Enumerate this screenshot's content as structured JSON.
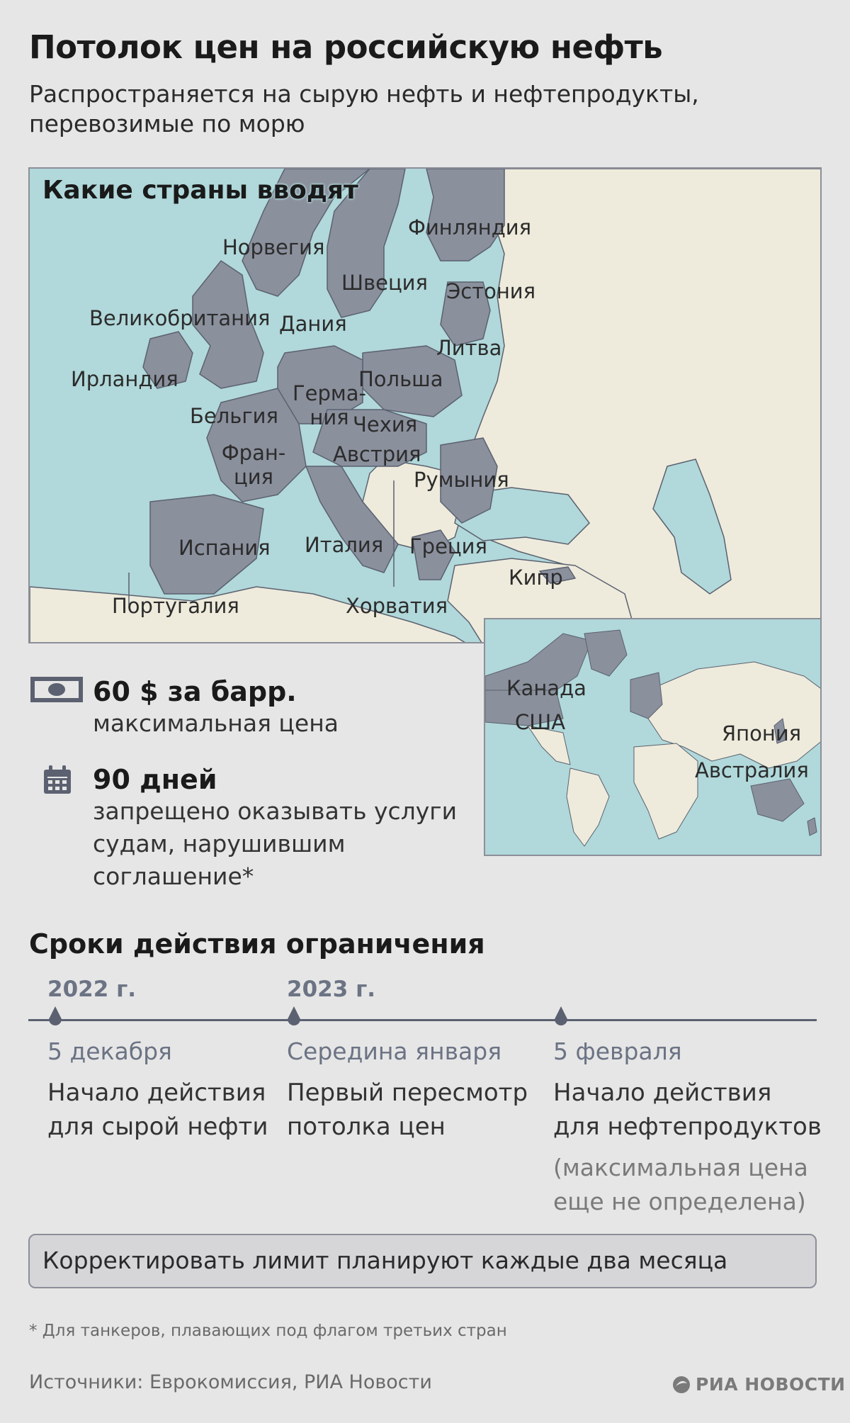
{
  "title": "Потолок цен на российскую нефть",
  "subtitle": "Распространяется на сырую нефть и нефтепродукты, перевозимые по морю",
  "colors": {
    "sea": "#b1d8da",
    "land": "#eeebdc",
    "participant": "#8b909d",
    "border": "#5b6170",
    "accent_text": "#6b7384"
  },
  "europe_map": {
    "heading": "Какие страны вводят",
    "labels": {
      "norway": "Норвегия",
      "finland": "Финляндия",
      "sweden": "Швеция",
      "estonia": "Эстония",
      "uk": "Великобритания",
      "denmark": "Дания",
      "lithuania": "Литва",
      "ireland": "Ирландия",
      "poland": "Польша",
      "germany": "Герма-ния",
      "belgium": "Бельгия",
      "czechia": "Чехия",
      "france": "Фран-ция",
      "austria": "Австрия",
      "romania": "Румыния",
      "spain": "Испания",
      "italy": "Италия",
      "greece": "Греция",
      "cyprus": "Кипр",
      "portugal": "Португалия",
      "croatia": "Хорватия"
    }
  },
  "world_map": {
    "labels": {
      "canada": "Канада",
      "usa": "США",
      "japan": "Япония",
      "australia": "Австралия"
    }
  },
  "facts": [
    {
      "icon": "money-icon",
      "value": "60 $ за барр.",
      "description": "максимальная цена"
    },
    {
      "icon": "calendar-icon",
      "value": "90 дней",
      "description": "запрещено оказывать услуги судам, нарушившим соглашение*"
    }
  ],
  "timeline": {
    "title": "Сроки действия ограничения",
    "years": [
      "2022 г.",
      "2023 г."
    ],
    "events": [
      {
        "date": "5 декабря",
        "text": "Начало действия для сырой нефти",
        "note": ""
      },
      {
        "date": "Середина января",
        "text": "Первый пересмотр потолка цен",
        "note": ""
      },
      {
        "date": "5 февраля",
        "text": "Начало действия для нефтепродуктов",
        "note": "(максимальная цена еще не определена)"
      }
    ]
  },
  "notice": "Корректировать лимит планируют каждые два месяца",
  "footnote": "* Для танкеров, плавающих под флагом третьих стран",
  "sources": "Источники: Еврокомиссия, РИА Новости",
  "brand": "РИА НОВОСТИ"
}
